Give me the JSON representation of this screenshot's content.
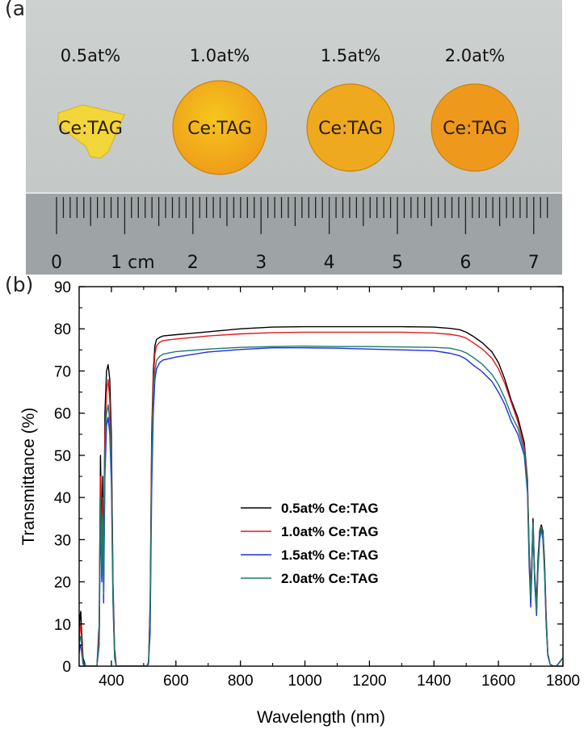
{
  "panel_a": {
    "letter": "(a)",
    "samples": [
      {
        "concentration": "0.5at%",
        "label": "Ce:TAG"
      },
      {
        "concentration": "1.0at%",
        "label": "Ce:TAG"
      },
      {
        "concentration": "1.5at%",
        "label": "Ce:TAG"
      },
      {
        "concentration": "2.0at%",
        "label": "Ce:TAG"
      }
    ],
    "ruler_labels": [
      "0",
      "1 cm",
      "2",
      "3",
      "4",
      "5",
      "6",
      "7"
    ],
    "colors": {
      "background": "#c8ccca",
      "crystal_light": "#f6c51d",
      "crystal_dark": "#ee9a1a",
      "ruler": "#9ea4a5"
    }
  },
  "panel_b": {
    "letter": "(b)"
  },
  "chart_data": {
    "type": "line",
    "title": "",
    "xlabel": "Wavelength (nm)",
    "ylabel": "Transmittance (%)",
    "xlim": [
      300,
      1800
    ],
    "ylim": [
      0,
      90
    ],
    "xticks": [
      400,
      600,
      800,
      1000,
      1200,
      1400,
      1600,
      1800
    ],
    "yticks": [
      0,
      10,
      20,
      30,
      40,
      50,
      60,
      70,
      80,
      90
    ],
    "legend_position": "center-left",
    "series": [
      {
        "name": "0.5at% Ce:TAG",
        "color": "#000000",
        "x": [
          300,
          303,
          305,
          308,
          312,
          320,
          340,
          355,
          362,
          366,
          370,
          373,
          376,
          380,
          385,
          390,
          395,
          400,
          405,
          410,
          415,
          420,
          430,
          440,
          470,
          500,
          510,
          515,
          520,
          525,
          530,
          535,
          540,
          550,
          560,
          600,
          700,
          800,
          900,
          1000,
          1100,
          1200,
          1300,
          1400,
          1450,
          1480,
          1500,
          1520,
          1550,
          1580,
          1600,
          1620,
          1640,
          1660,
          1680,
          1690,
          1695,
          1700,
          1703,
          1707,
          1712,
          1718,
          1722,
          1728,
          1733,
          1738,
          1743,
          1748,
          1753,
          1760,
          1770,
          1780,
          1790,
          1800
        ],
        "y": [
          8,
          12,
          13,
          8,
          2,
          0,
          0,
          0,
          10,
          50,
          30,
          45,
          20,
          60,
          70,
          71.5,
          68,
          55,
          20,
          4,
          0,
          0,
          0,
          0,
          0,
          0,
          0,
          1,
          15,
          55,
          70,
          76,
          77.5,
          78,
          78.3,
          78.6,
          79.3,
          80,
          80.4,
          80.5,
          80.5,
          80.5,
          80.5,
          80.4,
          80.1,
          79.8,
          79.2,
          78.3,
          76.7,
          74.5,
          72,
          68,
          63,
          59,
          53,
          44,
          28,
          18,
          24,
          35,
          22,
          15,
          25,
          32,
          33.5,
          32,
          25,
          12,
          3,
          0.5,
          0,
          0,
          1,
          2
        ]
      },
      {
        "name": "1.0at% Ce:TAG",
        "color": "#e41a1c",
        "x": [
          300,
          303,
          305,
          308,
          312,
          320,
          340,
          355,
          362,
          366,
          370,
          373,
          376,
          380,
          385,
          390,
          395,
          400,
          405,
          410,
          415,
          420,
          430,
          440,
          470,
          500,
          510,
          515,
          520,
          525,
          530,
          535,
          540,
          550,
          560,
          600,
          700,
          800,
          900,
          1000,
          1100,
          1200,
          1300,
          1400,
          1450,
          1480,
          1500,
          1520,
          1550,
          1580,
          1600,
          1620,
          1640,
          1660,
          1680,
          1690,
          1695,
          1700,
          1703,
          1707,
          1712,
          1718,
          1722,
          1728,
          1733,
          1738,
          1743,
          1748,
          1753,
          1760,
          1770,
          1780,
          1790,
          1800
        ],
        "y": [
          6,
          9,
          10,
          6,
          1,
          0,
          0,
          0,
          8,
          45,
          26,
          40,
          18,
          55,
          65,
          68,
          63,
          50,
          18,
          3,
          0,
          0,
          0,
          0,
          0,
          0,
          0,
          1,
          13,
          52,
          68,
          74,
          76,
          76.8,
          77.2,
          77.6,
          78.3,
          78.8,
          79.1,
          79.2,
          79.2,
          79.2,
          79.2,
          79,
          78.7,
          78.3,
          77.8,
          76.8,
          75.2,
          73,
          70.5,
          67,
          62.5,
          58,
          52,
          43,
          27,
          17,
          23,
          34,
          21,
          14,
          24,
          31,
          33,
          31,
          24,
          11,
          3,
          0.5,
          0,
          0,
          1,
          2
        ]
      },
      {
        "name": "1.5at% Ce:TAG",
        "color": "#1f2fe0",
        "x": [
          300,
          303,
          305,
          308,
          312,
          320,
          340,
          355,
          362,
          366,
          370,
          373,
          376,
          380,
          385,
          390,
          395,
          400,
          405,
          410,
          415,
          420,
          430,
          440,
          470,
          500,
          510,
          515,
          520,
          525,
          530,
          535,
          540,
          550,
          560,
          600,
          700,
          800,
          900,
          1000,
          1100,
          1200,
          1300,
          1400,
          1450,
          1480,
          1500,
          1520,
          1550,
          1580,
          1600,
          1620,
          1640,
          1660,
          1680,
          1690,
          1695,
          1700,
          1703,
          1707,
          1712,
          1718,
          1722,
          1728,
          1733,
          1738,
          1743,
          1748,
          1753,
          1760,
          1770,
          1780,
          1790,
          1800
        ],
        "y": [
          3,
          5,
          5,
          3,
          0.5,
          0,
          0,
          0,
          5,
          36,
          20,
          32,
          15,
          45,
          57,
          59,
          55,
          43,
          15,
          2,
          0,
          0,
          0,
          0,
          0,
          0,
          0,
          0.5,
          8,
          42,
          60,
          68,
          70.5,
          72,
          72.6,
          73.3,
          74.5,
          75.1,
          75.5,
          75.5,
          75.4,
          75.2,
          75,
          74.8,
          74.2,
          73.6,
          72.8,
          71.5,
          69.8,
          67.5,
          65,
          62,
          58,
          55,
          50,
          41,
          24,
          14,
          21,
          34,
          20,
          12,
          22,
          30,
          32.5,
          30,
          22,
          10,
          2.5,
          0.5,
          0,
          0,
          1,
          2
        ]
      },
      {
        "name": "2.0at% Ce:TAG",
        "color": "#1b7a6e",
        "x": [
          300,
          303,
          305,
          308,
          312,
          320,
          340,
          355,
          362,
          366,
          370,
          373,
          376,
          380,
          385,
          390,
          395,
          400,
          405,
          410,
          415,
          420,
          430,
          440,
          470,
          500,
          510,
          515,
          520,
          525,
          530,
          535,
          540,
          550,
          560,
          600,
          700,
          800,
          900,
          1000,
          1100,
          1200,
          1300,
          1400,
          1450,
          1480,
          1500,
          1520,
          1550,
          1580,
          1600,
          1620,
          1640,
          1660,
          1680,
          1690,
          1695,
          1700,
          1703,
          1707,
          1712,
          1718,
          1722,
          1728,
          1733,
          1738,
          1743,
          1748,
          1753,
          1760,
          1770,
          1780,
          1790,
          1800
        ],
        "y": [
          5,
          7,
          7,
          4,
          1,
          0,
          0,
          0,
          6,
          40,
          22,
          36,
          17,
          50,
          60,
          62,
          58,
          46,
          16,
          2,
          0,
          0,
          0,
          0,
          0,
          0,
          0,
          0.8,
          11,
          48,
          64,
          70,
          72.5,
          73.5,
          74,
          74.6,
          75.2,
          75.6,
          75.8,
          75.9,
          75.8,
          75.8,
          75.7,
          75.6,
          75.4,
          74.9,
          74.3,
          73.3,
          71.6,
          69.2,
          66.8,
          63.5,
          59.5,
          56.5,
          51,
          42,
          26,
          16,
          22,
          34,
          21,
          13,
          23,
          31,
          33,
          31,
          23,
          10,
          3,
          0.5,
          0,
          0,
          1,
          2
        ]
      }
    ]
  }
}
